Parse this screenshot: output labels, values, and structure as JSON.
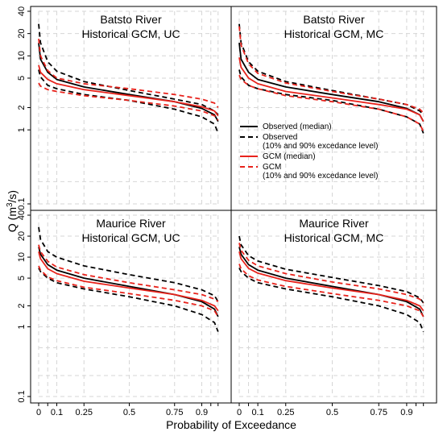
{
  "figure": {
    "xlabel": "Probability of Exceedance",
    "ylabel_main": "Q (m",
    "ylabel_sup": "3",
    "ylabel_tail": "/s)"
  },
  "colors": {
    "observed": "#000000",
    "gcm": "#e8231c",
    "grid": "#d6d6d6",
    "frame": "#000000"
  },
  "legend": {
    "items": [
      {
        "label": "Observed (median)",
        "label2": "",
        "color": "#000000",
        "style": "solid"
      },
      {
        "label": "Observed",
        "label2": "(10% and 90% excedance level)",
        "color": "#000000",
        "style": "dashed"
      },
      {
        "label": "GCM (median)",
        "label2": "",
        "color": "#e8231c",
        "style": "solid"
      },
      {
        "label": "GCM",
        "label2": "(10% and 90% excedance level)",
        "color": "#e8231c",
        "style": "dashed"
      }
    ]
  },
  "chart_data": [
    {
      "type": "line",
      "title": "Batsto River",
      "subtitle": "Historical GCM, UC",
      "xlabel": "Probability of Exceedance",
      "ylabel": "Q (m3/s)",
      "yscale": "log",
      "xlim": [
        0,
        1
      ],
      "ylim": [
        0.1,
        40
      ],
      "xticks": [
        0,
        0.1,
        0.25,
        0.5,
        0.75,
        0.9
      ],
      "xtick_labels": [
        "0",
        "0.1",
        "0.25",
        "0.5",
        "0.75",
        "0.9"
      ],
      "yticks": [
        0.1,
        1,
        2,
        5,
        10,
        20,
        40
      ],
      "ytick_labels": [
        "0.1",
        "1",
        "2",
        "5",
        "10",
        "20",
        "40"
      ],
      "x": [
        0,
        0.01,
        0.05,
        0.1,
        0.25,
        0.5,
        0.75,
        0.9,
        0.97,
        0.99
      ],
      "series": [
        {
          "name": "Observed (median)",
          "style": "solid",
          "color": "#000000",
          "values": [
            15,
            9.0,
            6.0,
            4.8,
            3.8,
            3.0,
            2.4,
            1.95,
            1.6,
            1.3
          ]
        },
        {
          "name": "Observed",
          "style": "dashed",
          "color": "#000000",
          "values": [
            27,
            15.0,
            8.3,
            6.2,
            4.5,
            3.4,
            2.6,
            2.2,
            1.8,
            1.6
          ]
        },
        {
          "name": "Observed",
          "style": "dashed",
          "color": "#000000",
          "values": [
            6.5,
            5.2,
            4.0,
            3.6,
            3.0,
            2.5,
            1.9,
            1.5,
            1.2,
            0.9
          ]
        },
        {
          "name": "GCM (median)",
          "style": "solid",
          "color": "#e8231c",
          "values": [
            7.5,
            6.0,
            4.8,
            4.2,
            3.5,
            2.9,
            2.4,
            2.05,
            1.8,
            1.55
          ]
        },
        {
          "name": "GCM",
          "style": "dashed",
          "color": "#e8231c",
          "values": [
            17,
            10.0,
            6.3,
            5.0,
            4.2,
            3.6,
            3.0,
            2.6,
            2.3,
            2.0
          ]
        },
        {
          "name": "GCM",
          "style": "dashed",
          "color": "#e8231c",
          "values": [
            4.3,
            3.9,
            3.5,
            3.3,
            2.9,
            2.5,
            2.1,
            1.8,
            1.55,
            1.35
          ]
        }
      ]
    },
    {
      "type": "line",
      "title": "Batsto River",
      "subtitle": "Historical GCM, MC",
      "xlabel": "Probability of Exceedance",
      "ylabel": "Q (m3/s)",
      "yscale": "log",
      "xlim": [
        0,
        1
      ],
      "ylim": [
        0.1,
        40
      ],
      "xticks": [
        0,
        0.1,
        0.25,
        0.5,
        0.75,
        0.9
      ],
      "xtick_labels": [
        "0",
        "0.1",
        "0.25",
        "0.5",
        "0.75",
        "0.9"
      ],
      "yticks": [
        0.1,
        1,
        2,
        5,
        10,
        20,
        40
      ],
      "ytick_labels": [
        "0.1",
        "1",
        "2",
        "5",
        "10",
        "20",
        "40"
      ],
      "x": [
        0,
        0.01,
        0.05,
        0.1,
        0.25,
        0.5,
        0.75,
        0.9,
        0.97,
        0.99
      ],
      "series": [
        {
          "name": "Observed (median)",
          "style": "solid",
          "color": "#000000",
          "values": [
            15,
            9.0,
            6.0,
            4.8,
            3.8,
            3.0,
            2.4,
            1.95,
            1.6,
            1.3
          ]
        },
        {
          "name": "Observed",
          "style": "dashed",
          "color": "#000000",
          "values": [
            27,
            15.0,
            8.3,
            6.2,
            4.5,
            3.4,
            2.6,
            2.2,
            1.8,
            1.6
          ]
        },
        {
          "name": "Observed",
          "style": "dashed",
          "color": "#000000",
          "values": [
            6.5,
            5.2,
            4.0,
            3.6,
            3.0,
            2.5,
            1.9,
            1.5,
            1.2,
            0.9
          ]
        },
        {
          "name": "GCM (median)",
          "style": "solid",
          "color": "#e8231c",
          "values": [
            9.5,
            7.0,
            5.0,
            4.2,
            3.3,
            2.7,
            2.2,
            1.9,
            1.6,
            1.3
          ]
        },
        {
          "name": "GCM",
          "style": "dashed",
          "color": "#e8231c",
          "values": [
            25,
            14.0,
            7.8,
            5.8,
            4.3,
            3.3,
            2.6,
            2.2,
            1.9,
            1.7
          ]
        },
        {
          "name": "GCM",
          "style": "dashed",
          "color": "#e8231c",
          "values": [
            5.5,
            4.8,
            4.0,
            3.6,
            2.9,
            2.4,
            1.9,
            1.5,
            1.2,
            0.95
          ]
        }
      ]
    },
    {
      "type": "line",
      "title": "Maurice River",
      "subtitle": "Historical GCM, UC",
      "xlabel": "Probability of Exceedance",
      "ylabel": "Q (m3/s)",
      "yscale": "log",
      "xlim": [
        0,
        1
      ],
      "ylim": [
        0.1,
        40
      ],
      "xticks": [
        0,
        0.1,
        0.25,
        0.5,
        0.75,
        0.9
      ],
      "xtick_labels": [
        "0",
        "0.1",
        "0.25",
        "0.5",
        "0.75",
        "0.9"
      ],
      "yticks": [
        0.1,
        1,
        2,
        5,
        10,
        20,
        40
      ],
      "ytick_labels": [
        "0.1",
        "1",
        "2",
        "5",
        "10",
        "20",
        "40"
      ],
      "x": [
        0,
        0.01,
        0.05,
        0.1,
        0.25,
        0.5,
        0.75,
        0.9,
        0.97,
        0.99
      ],
      "series": [
        {
          "name": "Observed (median)",
          "style": "solid",
          "color": "#000000",
          "values": [
            14,
            11.0,
            7.8,
            6.5,
            5.0,
            3.8,
            2.9,
            2.3,
            1.8,
            1.4
          ]
        },
        {
          "name": "Observed",
          "style": "dashed",
          "color": "#000000",
          "values": [
            27,
            18.0,
            12.0,
            10.0,
            7.5,
            5.6,
            4.3,
            3.4,
            2.8,
            2.3
          ]
        },
        {
          "name": "Observed",
          "style": "dashed",
          "color": "#000000",
          "values": [
            7.0,
            6.2,
            5.0,
            4.3,
            3.5,
            2.7,
            2.0,
            1.5,
            1.15,
            0.85
          ]
        },
        {
          "name": "GCM (median)",
          "style": "solid",
          "color": "#e8231c",
          "values": [
            12,
            9.5,
            6.8,
            5.8,
            4.5,
            3.6,
            2.9,
            2.4,
            2.0,
            1.7
          ]
        },
        {
          "name": "GCM",
          "style": "dashed",
          "color": "#e8231c",
          "values": [
            15,
            12.0,
            8.7,
            7.2,
            5.6,
            4.3,
            3.4,
            2.9,
            2.5,
            2.3
          ]
        },
        {
          "name": "GCM",
          "style": "dashed",
          "color": "#e8231c",
          "values": [
            7.5,
            6.5,
            5.2,
            4.6,
            3.7,
            3.0,
            2.4,
            2.0,
            1.7,
            1.4
          ]
        }
      ]
    },
    {
      "type": "line",
      "title": "Maurice River",
      "subtitle": "Historical GCM, MC",
      "xlabel": "Probability of Exceedance",
      "ylabel": "Q (m3/s)",
      "yscale": "log",
      "xlim": [
        0,
        1
      ],
      "ylim": [
        0.1,
        40
      ],
      "xticks": [
        0,
        0.1,
        0.25,
        0.5,
        0.75,
        0.9
      ],
      "xtick_labels": [
        "0",
        "0.1",
        "0.25",
        "0.5",
        "0.75",
        "0.9"
      ],
      "yticks": [
        0.1,
        1,
        2,
        5,
        10,
        20,
        40
      ],
      "ytick_labels": [
        "0.1",
        "1",
        "2",
        "5",
        "10",
        "20",
        "40"
      ],
      "x": [
        0,
        0.01,
        0.05,
        0.1,
        0.25,
        0.5,
        0.75,
        0.9,
        0.97,
        0.99
      ],
      "series": [
        {
          "name": "Observed (median)",
          "style": "solid",
          "color": "#000000",
          "values": [
            14,
            11.0,
            7.8,
            6.5,
            5.0,
            3.8,
            2.9,
            2.3,
            1.8,
            1.4
          ]
        },
        {
          "name": "Observed",
          "style": "dashed",
          "color": "#000000",
          "values": [
            20,
            15.0,
            10.5,
            8.8,
            6.7,
            5.1,
            3.9,
            3.2,
            2.6,
            2.2
          ]
        },
        {
          "name": "Observed",
          "style": "dashed",
          "color": "#000000",
          "values": [
            7.0,
            6.2,
            5.0,
            4.3,
            3.5,
            2.7,
            2.0,
            1.5,
            1.15,
            0.85
          ]
        },
        {
          "name": "GCM (median)",
          "style": "solid",
          "color": "#e8231c",
          "values": [
            12,
            9.5,
            6.9,
            5.9,
            4.6,
            3.6,
            2.9,
            2.4,
            2.0,
            1.7
          ]
        },
        {
          "name": "GCM",
          "style": "dashed",
          "color": "#e8231c",
          "values": [
            16,
            12.5,
            9.0,
            7.5,
            5.8,
            4.4,
            3.5,
            2.9,
            2.5,
            2.2
          ]
        },
        {
          "name": "GCM",
          "style": "dashed",
          "color": "#e8231c",
          "values": [
            8.0,
            6.8,
            5.4,
            4.7,
            3.8,
            3.0,
            2.4,
            2.0,
            1.7,
            1.4
          ]
        }
      ]
    }
  ]
}
